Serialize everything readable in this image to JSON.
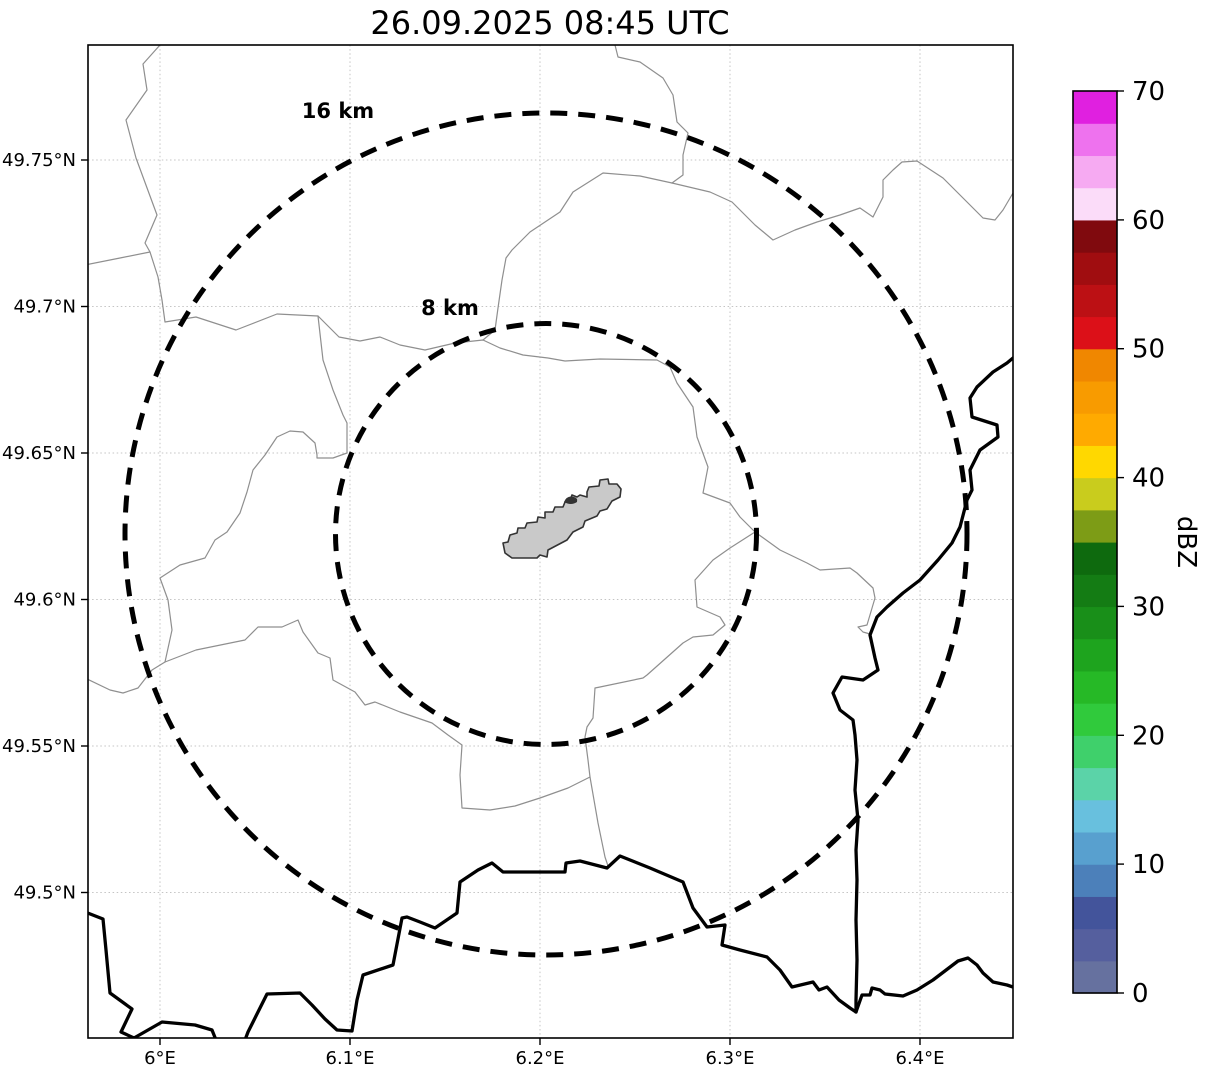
{
  "title": "26.09.2025 08:45 UTC",
  "map": {
    "x_ticks": [
      {
        "label": "6°E",
        "lon": 6.0
      },
      {
        "label": "6.1°E",
        "lon": 6.1
      },
      {
        "label": "6.2°E",
        "lon": 6.2
      },
      {
        "label": "6.3°E",
        "lon": 6.3
      },
      {
        "label": "6.4°E",
        "lon": 6.4
      }
    ],
    "y_ticks": [
      {
        "label": "49.75°N",
        "lat": 49.75
      },
      {
        "label": "49.7°N",
        "lat": 49.7
      },
      {
        "label": "49.65°N",
        "lat": 49.65
      },
      {
        "label": "49.6°N",
        "lat": 49.6
      },
      {
        "label": "49.55°N",
        "lat": 49.55
      },
      {
        "label": "49.5°N",
        "lat": 49.5
      }
    ],
    "rings": [
      {
        "label": "16 km",
        "radius_km": 16
      },
      {
        "label": "8 km",
        "radius_km": 8
      }
    ],
    "extent": {
      "lon_min": 5.96,
      "lon_max": 6.45,
      "lat_min": 49.45,
      "lat_max": 49.79
    },
    "features": {
      "airport_polygon_fill": "#c9c9c9",
      "thick_border_color": "#000000",
      "thin_border_color": "#8f8f8f"
    }
  },
  "colorbar": {
    "label": "dBZ",
    "ticks": [
      "70",
      "60",
      "50",
      "40",
      "30",
      "20",
      "10",
      "0"
    ],
    "min": 0,
    "max": 70,
    "step": 2.5,
    "colors": [
      "#66719f",
      "#555f9e",
      "#43549b",
      "#4c80ba",
      "#58a0cf",
      "#68c0de",
      "#5bd3a8",
      "#3fd06b",
      "#30ca3c",
      "#26b926",
      "#1ea41e",
      "#198f19",
      "#147c14",
      "#0e6a0e",
      "#7d9c16",
      "#c9cc1d",
      "#ffd800",
      "#ffaa00",
      "#f89b00",
      "#f08700",
      "#dc1018",
      "#bc1014",
      "#a00d10",
      "#800a0e",
      "#fbdcf9",
      "#f6aaf2",
      "#ee72ee",
      "#e020e0"
    ]
  },
  "chart_data": {
    "type": "map",
    "title": "26.09.2025 08:45 UTC",
    "colorbar_label": "dBZ",
    "colorbar_range": [
      0,
      70
    ],
    "colorbar_tick_values": [
      0,
      10,
      20,
      30,
      40,
      50,
      60,
      70
    ],
    "x_tick_values_deg_east": [
      6.0,
      6.1,
      6.2,
      6.3,
      6.4
    ],
    "y_tick_values_deg_north": [
      49.5,
      49.55,
      49.6,
      49.65,
      49.7,
      49.75
    ],
    "range_rings_km": [
      8,
      16
    ],
    "radar_echoes": "none visible (empty reflectivity field)",
    "grid": "dotted",
    "legend_position": "right colorbar"
  }
}
